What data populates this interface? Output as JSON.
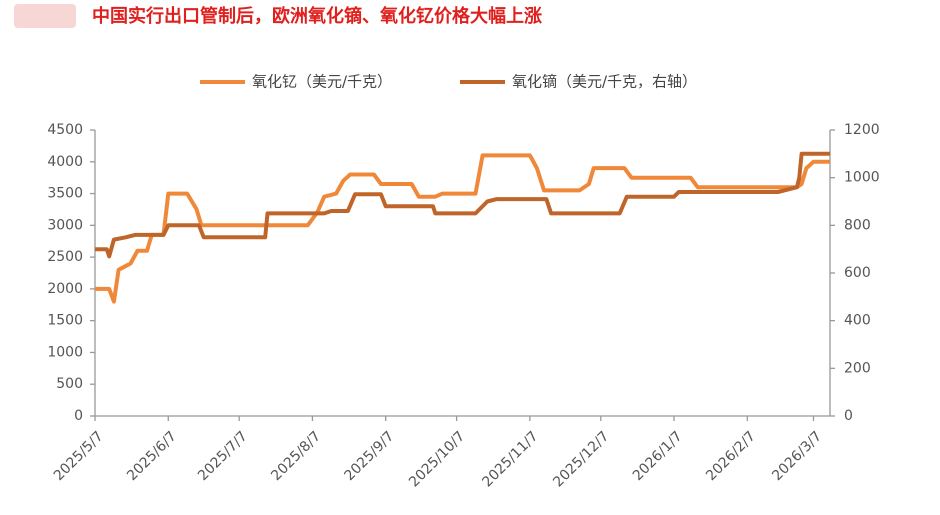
{
  "chart_data": {
    "type": "line",
    "title": "中国实行出口管制后，欧洲氧化镝、氧化钇价格大幅上涨",
    "xlim": [
      "2025-05-07",
      "2026-03-14"
    ],
    "xticks": [
      {
        "value": "2025-05-07",
        "label": "2025/5/7"
      },
      {
        "value": "2025-06-07",
        "label": "2025/6/7"
      },
      {
        "value": "2025-07-07",
        "label": "2025/7/7"
      },
      {
        "value": "2025-08-07",
        "label": "2025/8/7"
      },
      {
        "value": "2025-09-07",
        "label": "2025/9/7"
      },
      {
        "value": "2025-10-07",
        "label": "2025/10/7"
      },
      {
        "value": "2025-11-07",
        "label": "2025/11/7"
      },
      {
        "value": "2025-12-07",
        "label": "2025/12/7"
      },
      {
        "value": "2026-01-07",
        "label": "2026/1/7"
      },
      {
        "value": "2026-02-07",
        "label": "2026/2/7"
      },
      {
        "value": "2026-03-07",
        "label": "2026/3/7"
      }
    ],
    "ylim": [
      0,
      4500
    ],
    "yticks": [
      0,
      500,
      1000,
      1500,
      2000,
      2500,
      3000,
      3500,
      4000,
      4500
    ],
    "y2lim": [
      0,
      1200
    ],
    "y2ticks": [
      0,
      200,
      400,
      600,
      800,
      1000,
      1200
    ],
    "series": [
      {
        "name": "氧化钇（美元/千克）",
        "color": "#f0883a",
        "axis": "y",
        "x": [
          "2025-05-07",
          "2025-05-13",
          "2025-05-15",
          "2025-05-17",
          "2025-05-22",
          "2025-05-25",
          "2025-05-29",
          "2025-05-31",
          "2025-06-05",
          "2025-06-07",
          "2025-06-15",
          "2025-06-19",
          "2025-06-21",
          "2025-07-31",
          "2025-08-05",
          "2025-08-09",
          "2025-08-12",
          "2025-08-17",
          "2025-08-20",
          "2025-08-23",
          "2025-09-02",
          "2025-09-05",
          "2025-09-18",
          "2025-09-21",
          "2025-09-28",
          "2025-10-01",
          "2025-10-15",
          "2025-10-18",
          "2025-11-07",
          "2025-11-10",
          "2025-11-13",
          "2025-11-28",
          "2025-12-02",
          "2025-12-04",
          "2025-12-17",
          "2025-12-20",
          "2026-01-14",
          "2026-01-17",
          "2026-02-28",
          "2026-03-02",
          "2026-03-04",
          "2026-03-07",
          "2026-03-14"
        ],
        "values": [
          2000,
          2000,
          1800,
          2300,
          2400,
          2600,
          2600,
          2850,
          2850,
          3500,
          3500,
          3250,
          3000,
          3000,
          3000,
          3200,
          3450,
          3500,
          3700,
          3800,
          3800,
          3650,
          3650,
          3450,
          3450,
          3500,
          3500,
          4100,
          4100,
          3900,
          3550,
          3550,
          3650,
          3900,
          3900,
          3750,
          3750,
          3600,
          3600,
          3650,
          3900,
          4000,
          4000
        ]
      },
      {
        "name": "氧化镝（美元/千克，右轴）",
        "color": "#c0652a",
        "axis": "y2",
        "x": [
          "2025-05-07",
          "2025-05-12",
          "2025-05-13",
          "2025-05-15",
          "2025-05-20",
          "2025-05-24",
          "2025-06-05",
          "2025-06-07",
          "2025-06-20",
          "2025-06-22",
          "2025-07-18",
          "2025-07-19",
          "2025-08-12",
          "2025-08-15",
          "2025-08-22",
          "2025-08-25",
          "2025-09-05",
          "2025-09-07",
          "2025-09-27",
          "2025-09-28",
          "2025-10-15",
          "2025-10-20",
          "2025-10-24",
          "2025-11-14",
          "2025-11-16",
          "2025-12-15",
          "2025-12-18",
          "2026-01-07",
          "2026-01-09",
          "2026-02-20",
          "2026-02-28",
          "2026-03-01",
          "2026-03-02",
          "2026-03-14"
        ],
        "values": [
          700,
          700,
          670,
          740,
          750,
          760,
          760,
          800,
          800,
          750,
          750,
          850,
          850,
          860,
          860,
          930,
          930,
          880,
          880,
          850,
          850,
          900,
          910,
          910,
          850,
          850,
          920,
          920,
          940,
          940,
          960,
          1000,
          1100,
          1100
        ]
      }
    ]
  }
}
